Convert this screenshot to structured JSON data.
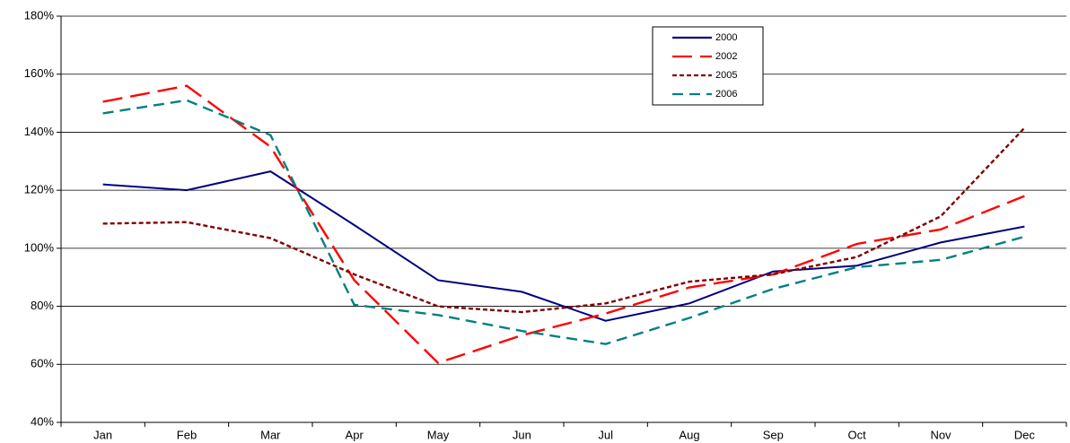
{
  "chart_data": {
    "type": "line",
    "categories": [
      "Jan",
      "Feb",
      "Mar",
      "Apr",
      "May",
      "Jun",
      "Jul",
      "Aug",
      "Sep",
      "Oct",
      "Nov",
      "Dec"
    ],
    "series": [
      {
        "name": "2000",
        "color": "#000080",
        "dash": "solid",
        "values": [
          122,
          120,
          126.5,
          108,
          89,
          85,
          75,
          81,
          92,
          94,
          102,
          107.5
        ]
      },
      {
        "name": "2002",
        "color": "#ff0000",
        "dash": "long",
        "values": [
          150.5,
          156,
          135,
          89,
          60.5,
          70,
          77.5,
          86.5,
          91,
          101.5,
          106.5,
          118
        ]
      },
      {
        "name": "2005",
        "color": "#800000",
        "dash": "short",
        "values": [
          108.5,
          109,
          103.5,
          91,
          80,
          78,
          81,
          88.5,
          91,
          97,
          111,
          141.5
        ]
      },
      {
        "name": "2006",
        "color": "#008080",
        "dash": "medium",
        "values": [
          146.5,
          151,
          139,
          80.5,
          77,
          71.5,
          67,
          76,
          86,
          93.5,
          96,
          104
        ]
      }
    ],
    "ylim": [
      40,
      180
    ],
    "yticks": [
      {
        "value": 40,
        "label": "40%"
      },
      {
        "value": 60,
        "label": "60%"
      },
      {
        "value": 80,
        "label": "80%"
      },
      {
        "value": 100,
        "label": "100%"
      },
      {
        "value": 120,
        "label": "120%"
      },
      {
        "value": 140,
        "label": "140%"
      },
      {
        "value": 160,
        "label": "160%"
      },
      {
        "value": 180,
        "label": "180%"
      }
    ],
    "grid": true,
    "legend": "top-right"
  }
}
